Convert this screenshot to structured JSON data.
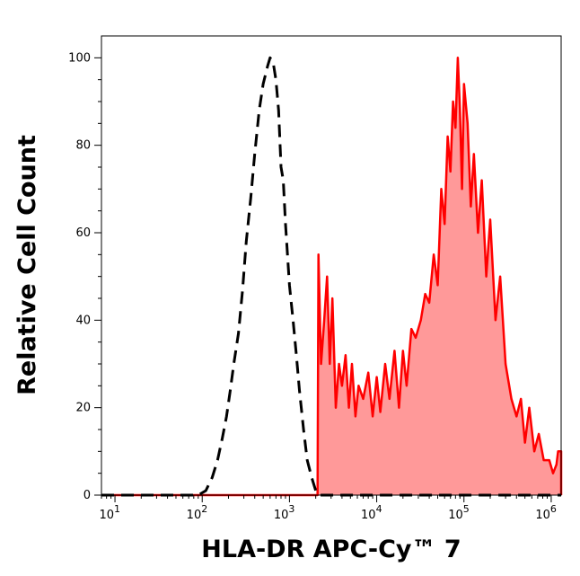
{
  "chart_data": {
    "type": "area",
    "title": "",
    "xlabel": "HLA-DR APC-Cy™ 7",
    "ylabel": "Relative Cell Count",
    "x_scale": "log",
    "xlim": [
      7,
      1300000
    ],
    "ylim": [
      0,
      105
    ],
    "grid": false,
    "legend": "none",
    "x_ticks": [
      {
        "value": 10,
        "base": "10",
        "exp": "1"
      },
      {
        "value": 100,
        "base": "10",
        "exp": "2"
      },
      {
        "value": 1000,
        "base": "10",
        "exp": "3"
      },
      {
        "value": 10000,
        "base": "10",
        "exp": "4"
      },
      {
        "value": 100000,
        "base": "10",
        "exp": "5"
      },
      {
        "value": 1000000,
        "base": "10",
        "exp": "6"
      }
    ],
    "y_ticks": [
      {
        "value": 0,
        "label": "0"
      },
      {
        "value": 20,
        "label": "20"
      },
      {
        "value": 40,
        "label": "40"
      },
      {
        "value": 60,
        "label": "60"
      },
      {
        "value": 80,
        "label": "80"
      },
      {
        "value": 100,
        "label": "100"
      }
    ],
    "series": [
      {
        "style": "dashed",
        "color": "#000000",
        "fill": "none",
        "points": [
          [
            7,
            0
          ],
          [
            50,
            0
          ],
          [
            90,
            0
          ],
          [
            110,
            1
          ],
          [
            130,
            4
          ],
          [
            150,
            8
          ],
          [
            170,
            13
          ],
          [
            190,
            18
          ],
          [
            210,
            24
          ],
          [
            230,
            30
          ],
          [
            260,
            37
          ],
          [
            290,
            47
          ],
          [
            320,
            58
          ],
          [
            360,
            68
          ],
          [
            400,
            78
          ],
          [
            450,
            88
          ],
          [
            500,
            94
          ],
          [
            560,
            98
          ],
          [
            600,
            100
          ],
          [
            650,
            99
          ],
          [
            700,
            95
          ],
          [
            750,
            88
          ],
          [
            800,
            75
          ],
          [
            850,
            72
          ],
          [
            900,
            62
          ],
          [
            950,
            55
          ],
          [
            1000,
            48
          ],
          [
            1100,
            40
          ],
          [
            1200,
            32
          ],
          [
            1300,
            24
          ],
          [
            1450,
            15
          ],
          [
            1600,
            8
          ],
          [
            1800,
            4
          ],
          [
            2000,
            1
          ],
          [
            2200,
            0
          ],
          [
            1300000,
            0
          ]
        ]
      },
      {
        "style": "solid",
        "color": "#ff0000",
        "fill": "#ff9999",
        "points": [
          [
            7,
            0
          ],
          [
            2100,
            0
          ],
          [
            2150,
            55
          ],
          [
            2300,
            30
          ],
          [
            2500,
            40
          ],
          [
            2700,
            50
          ],
          [
            2900,
            30
          ],
          [
            3100,
            45
          ],
          [
            3400,
            20
          ],
          [
            3700,
            30
          ],
          [
            4000,
            25
          ],
          [
            4400,
            32
          ],
          [
            4800,
            20
          ],
          [
            5200,
            30
          ],
          [
            5700,
            18
          ],
          [
            6200,
            25
          ],
          [
            7000,
            22
          ],
          [
            8000,
            28
          ],
          [
            9000,
            18
          ],
          [
            10000,
            27
          ],
          [
            11000,
            19
          ],
          [
            12500,
            30
          ],
          [
            14000,
            22
          ],
          [
            16000,
            33
          ],
          [
            18000,
            20
          ],
          [
            20000,
            33
          ],
          [
            22000,
            25
          ],
          [
            25000,
            38
          ],
          [
            28000,
            36
          ],
          [
            32000,
            40
          ],
          [
            36000,
            46
          ],
          [
            40000,
            44
          ],
          [
            45000,
            55
          ],
          [
            50000,
            48
          ],
          [
            55000,
            70
          ],
          [
            60000,
            62
          ],
          [
            65000,
            82
          ],
          [
            70000,
            74
          ],
          [
            75000,
            90
          ],
          [
            80000,
            84
          ],
          [
            85000,
            100
          ],
          [
            90000,
            88
          ],
          [
            95000,
            70
          ],
          [
            100000,
            94
          ],
          [
            110000,
            85
          ],
          [
            120000,
            66
          ],
          [
            130000,
            78
          ],
          [
            145000,
            60
          ],
          [
            160000,
            72
          ],
          [
            180000,
            50
          ],
          [
            200000,
            63
          ],
          [
            230000,
            40
          ],
          [
            260000,
            50
          ],
          [
            300000,
            30
          ],
          [
            350000,
            22
          ],
          [
            400000,
            18
          ],
          [
            450000,
            22
          ],
          [
            500000,
            12
          ],
          [
            560000,
            20
          ],
          [
            640000,
            10
          ],
          [
            720000,
            14
          ],
          [
            820000,
            8
          ],
          [
            950000,
            8
          ],
          [
            1050000,
            5
          ],
          [
            1150000,
            7
          ],
          [
            1200000,
            10
          ],
          [
            1300000,
            10
          ],
          [
            1300000,
            0
          ]
        ]
      }
    ]
  }
}
